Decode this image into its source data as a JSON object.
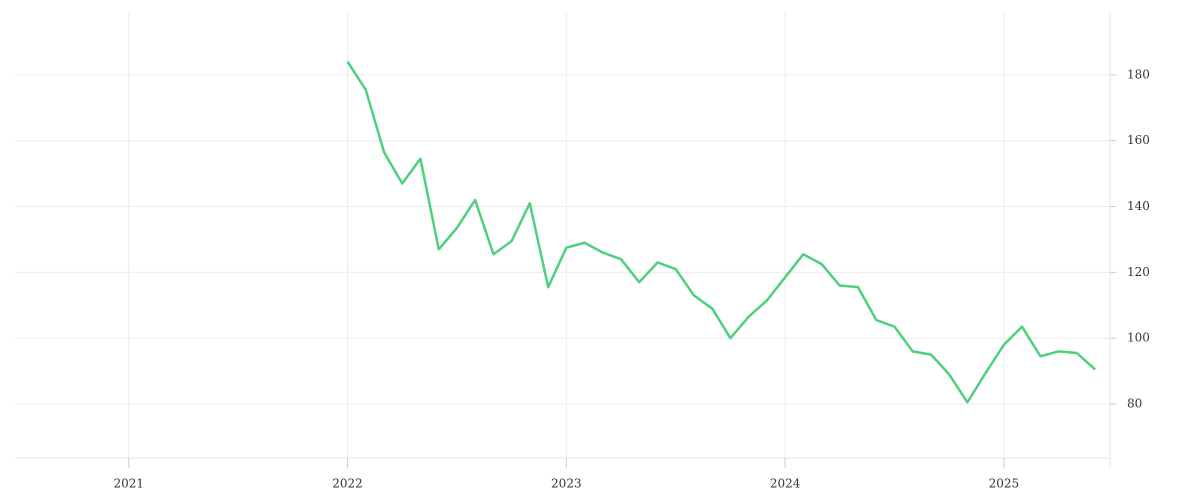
{
  "chart_data": {
    "type": "line",
    "x": [
      2022.0,
      2022.083,
      2022.167,
      2022.25,
      2022.333,
      2022.417,
      2022.5,
      2022.583,
      2022.667,
      2022.75,
      2022.833,
      2022.917,
      2023.0,
      2023.083,
      2023.167,
      2023.25,
      2023.333,
      2023.417,
      2023.5,
      2023.583,
      2023.667,
      2023.75,
      2023.833,
      2023.917,
      2024.0,
      2024.083,
      2024.167,
      2024.25,
      2024.333,
      2024.417,
      2024.5,
      2024.583,
      2024.667,
      2024.75,
      2024.833,
      2024.917,
      2025.0,
      2025.083,
      2025.167,
      2025.25,
      2025.333,
      2025.417
    ],
    "series": [
      {
        "color": "#4fd07f",
        "values": [
          184,
          175.5,
          156.5,
          147,
          154.5,
          127,
          133.5,
          142,
          125.5,
          129.5,
          141,
          115.5,
          127.5,
          129,
          126,
          124,
          117,
          123,
          121,
          113,
          109,
          100,
          106.5,
          111.5,
          118.5,
          125.5,
          122.5,
          116,
          115.5,
          105.5,
          103.5,
          96,
          95,
          89,
          80.5,
          89.5,
          98,
          103.5,
          94.5,
          96,
          95.5,
          90.5
        ]
      }
    ],
    "xlim": [
      2020.48,
      2025.485
    ],
    "xticks": [
      {
        "value": 2021,
        "label": "2021"
      },
      {
        "value": 2022,
        "label": "2022"
      },
      {
        "value": 2023,
        "label": "2023"
      },
      {
        "value": 2024,
        "label": "2024"
      },
      {
        "value": 2025,
        "label": "2025"
      }
    ],
    "ylim": [
      63.6,
      199.1
    ],
    "yticks": [
      80,
      100,
      120,
      140,
      160,
      180
    ],
    "grid": true
  }
}
